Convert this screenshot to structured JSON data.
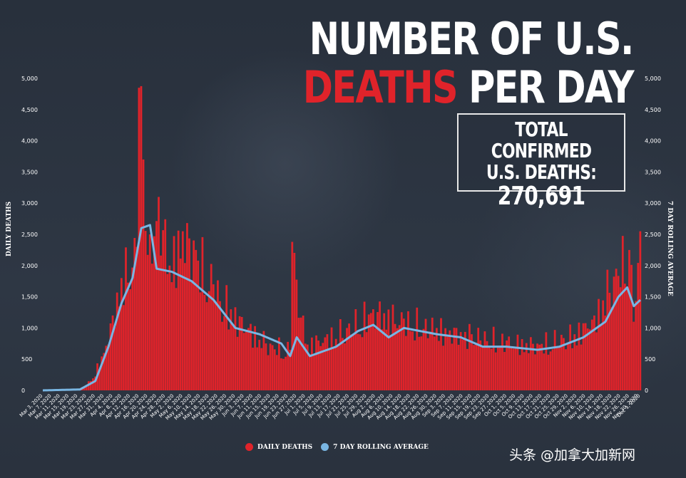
{
  "header": {
    "title_line1": "NUMBER OF U.S.",
    "title_line2_red": "DEATHS",
    "title_line2_white": " PER DAY"
  },
  "total_box": {
    "line1": "TOTAL CONFIRMED",
    "line2": "U.S. DEATHS:",
    "value": "270,691"
  },
  "watermark": "头条 @加拿大加新网",
  "colors": {
    "bar": "#e0232a",
    "line": "#79b6e3",
    "background": "#2b3340"
  },
  "chart_data": {
    "type": "bar",
    "title": "NUMBER OF U.S. DEATHS PER DAY",
    "ylabel": "DAILY DEATHS",
    "y2label": "7 DAY ROLLING AVERAGE",
    "ylim": [
      0,
      5000
    ],
    "yticks": [
      "5,000",
      "4,500",
      "4,000",
      "3,500",
      "3,000",
      "2,500",
      "2,000",
      "1,500",
      "1,000",
      "500",
      "0"
    ],
    "xtick_labels": [
      "Mar 3, 2020",
      "Mar 7, 2020",
      "Mar 11, 2020",
      "Mar 15, 2020",
      "Mar 19, 2020",
      "Mar 23, 2020",
      "Mar 27, 2020",
      "Mar 31, 2020",
      "Apr 4, 2020",
      "Apr 8, 2020",
      "Apr 12, 2020",
      "Apr 16, 2020",
      "Apr 20, 2020",
      "Apr 24, 2020",
      "Apr 28, 2020",
      "May 2, 2020",
      "May 6, 2020",
      "May 10, 2020",
      "May 14, 2020",
      "May 18, 2020",
      "May 22, 2020",
      "May 26, 2020",
      "May 30, 2020",
      "Jun 3, 2020",
      "Jun 7, 2020",
      "Jun 11, 2020",
      "Jun 15, 2020",
      "Jun 19, 2020",
      "Jun 23, 2020",
      "Jun 27, 2020",
      "Jul 1, 2020",
      "Jul 5, 2020",
      "Jul 9, 2020",
      "Jul 13, 2020",
      "Jul 17, 2020",
      "Jul 21, 2020",
      "Jul 25, 2020",
      "Jul 29, 2020",
      "Aug 2, 2020",
      "Aug 6, 2020",
      "Aug 10, 2020",
      "Aug 14, 2020",
      "Aug 18, 2020",
      "Aug 22, 2020",
      "Aug 26, 2020",
      "Aug 30, 2020",
      "Sep 3, 2020",
      "Sep 7, 2020",
      "Sep 11, 2020",
      "Sep 15, 2020",
      "Sep 19, 2020",
      "Sep 23, 2020",
      "Sep 27, 2020",
      "Oct 1, 2020",
      "Oct 5, 2020",
      "Oct 9, 2020",
      "Oct 13, 2020",
      "Oct 17, 2020",
      "Oct 21, 2020",
      "Oct 25, 2020",
      "Oct 29, 2020",
      "Nov 2, 2020",
      "Nov 6, 2020",
      "Nov 10, 2020",
      "Nov 14, 2020",
      "Nov 18, 2020",
      "Nov 22, 2020",
      "Nov 26, 2020",
      "Nov 30, 2020",
      "Dec 1, 2020"
    ],
    "legend": [
      {
        "name": "DAILY DEATHS",
        "color": "#e0232a"
      },
      {
        "name": "7 DAY ROLLING AVERAGE",
        "color": "#79b6e3"
      }
    ],
    "legend_position": "bottom-center",
    "grid": false,
    "x_range": [
      "Mar 3, 2020",
      "Dec 1, 2020"
    ],
    "series": [
      {
        "name": "DAILY DEATHS",
        "type": "bar",
        "keypoints": [
          [
            "Mar 3, 2020",
            0
          ],
          [
            "Mar 20, 2020",
            20
          ],
          [
            "Mar 25, 2020",
            150
          ],
          [
            "Mar 31, 2020",
            600
          ],
          [
            "Apr 4, 2020",
            1200
          ],
          [
            "Apr 8, 2020",
            1800
          ],
          [
            "Apr 15, 2020",
            2300
          ],
          [
            "Apr 16, 2020",
            4850
          ],
          [
            "Apr 18, 2020",
            3700
          ],
          [
            "Apr 21, 2020",
            2500
          ],
          [
            "Apr 25, 2020",
            3100
          ],
          [
            "Apr 30, 2020",
            2000
          ],
          [
            "May 6, 2020",
            2550
          ],
          [
            "May 12, 2020",
            2250
          ],
          [
            "May 20, 2020",
            1700
          ],
          [
            "May 28, 2020",
            1300
          ],
          [
            "Jun 5, 2020",
            1000
          ],
          [
            "Jun 15, 2020",
            750
          ],
          [
            "Jun 24, 2020",
            650
          ],
          [
            "Jun 25, 2020",
            2380
          ],
          [
            "Jul 1, 2020",
            750
          ],
          [
            "Jul 10, 2020",
            850
          ],
          [
            "Jul 20, 2020",
            1000
          ],
          [
            "Aug 1, 2020",
            1300
          ],
          [
            "Aug 15, 2020",
            1150
          ],
          [
            "Aug 30, 2020",
            1000
          ],
          [
            "Sep 15, 2020",
            900
          ],
          [
            "Oct 1, 2020",
            800
          ],
          [
            "Oct 15, 2020",
            750
          ],
          [
            "Nov 1, 2020",
            900
          ],
          [
            "Nov 10, 2020",
            1200
          ],
          [
            "Nov 20, 2020",
            1950
          ],
          [
            "Nov 26, 2020",
            2250
          ],
          [
            "Nov 28, 2020",
            1100
          ],
          [
            "Dec 1, 2020",
            2550
          ]
        ]
      },
      {
        "name": "7 DAY ROLLING AVERAGE",
        "type": "line",
        "keypoints": [
          [
            "Mar 3, 2020",
            0
          ],
          [
            "Mar 20, 2020",
            15
          ],
          [
            "Mar 27, 2020",
            150
          ],
          [
            "Apr 2, 2020",
            700
          ],
          [
            "Apr 8, 2020",
            1400
          ],
          [
            "Apr 13, 2020",
            1800
          ],
          [
            "Apr 17, 2020",
            2600
          ],
          [
            "Apr 21, 2020",
            2650
          ],
          [
            "Apr 24, 2020",
            1950
          ],
          [
            "May 1, 2020",
            1900
          ],
          [
            "May 10, 2020",
            1750
          ],
          [
            "May 20, 2020",
            1450
          ],
          [
            "May 30, 2020",
            1000
          ],
          [
            "Jun 10, 2020",
            900
          ],
          [
            "Jun 20, 2020",
            750
          ],
          [
            "Jun 24, 2020",
            550
          ],
          [
            "Jun 27, 2020",
            850
          ],
          [
            "Jul 3, 2020",
            550
          ],
          [
            "Jul 15, 2020",
            700
          ],
          [
            "Jul 25, 2020",
            950
          ],
          [
            "Aug 1, 2020",
            1050
          ],
          [
            "Aug 8, 2020",
            850
          ],
          [
            "Aug 15, 2020",
            1000
          ],
          [
            "Aug 30, 2020",
            900
          ],
          [
            "Sep 10, 2020",
            850
          ],
          [
            "Sep 20, 2020",
            700
          ],
          [
            "Oct 1, 2020",
            700
          ],
          [
            "Oct 15, 2020",
            650
          ],
          [
            "Oct 25, 2020",
            700
          ],
          [
            "Nov 5, 2020",
            850
          ],
          [
            "Nov 15, 2020",
            1100
          ],
          [
            "Nov 21, 2020",
            1500
          ],
          [
            "Nov 25, 2020",
            1650
          ],
          [
            "Nov 28, 2020",
            1350
          ],
          [
            "Dec 1, 2020",
            1450
          ]
        ]
      }
    ]
  }
}
